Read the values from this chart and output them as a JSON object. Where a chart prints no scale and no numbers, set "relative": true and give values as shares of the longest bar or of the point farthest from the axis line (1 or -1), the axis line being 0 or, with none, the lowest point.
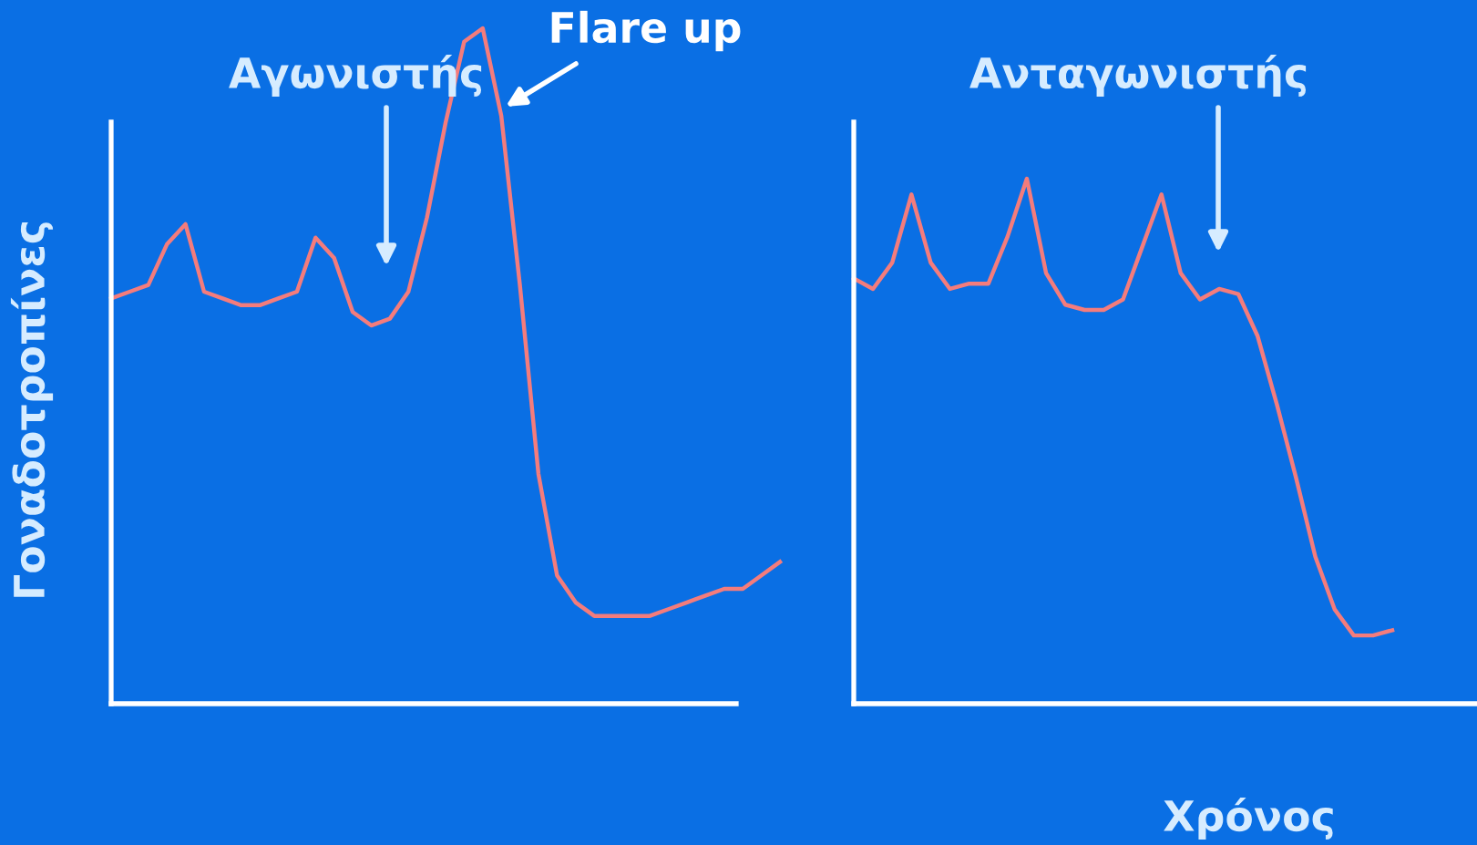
{
  "chart_data": [
    {
      "type": "line",
      "relative": true,
      "ylabel": "Γοναδοτροπίνες",
      "annotations": [
        "Αγωνιστής",
        "Flare up"
      ],
      "categories": [
        null,
        null,
        null,
        null,
        null,
        null,
        null,
        null,
        null,
        null,
        null,
        null,
        null,
        null,
        null,
        null,
        null,
        null,
        null,
        null,
        null,
        null,
        null,
        null,
        null,
        null,
        null,
        null,
        null,
        null,
        null,
        null,
        null,
        null,
        null,
        null,
        null
      ],
      "series": [
        {
          "color": "#f47c7c",
          "values": [
            0.6,
            0.61,
            0.62,
            0.68,
            0.71,
            0.61,
            0.6,
            0.59,
            0.59,
            0.6,
            0.61,
            0.69,
            0.66,
            0.58,
            0.56,
            0.57,
            0.61,
            0.72,
            0.86,
            0.98,
            1.0,
            0.87,
            0.62,
            0.34,
            0.19,
            0.15,
            0.13,
            0.13,
            0.13,
            0.13,
            0.14,
            0.15,
            0.16,
            0.17,
            0.17,
            0.19,
            0.21
          ]
        }
      ],
      "grid": false,
      "legend": false,
      "marker": "none",
      "line_style": "solid"
    },
    {
      "type": "line",
      "relative": true,
      "xlabel": "Χρόνος",
      "annotations": [
        "Ανταγωνιστής"
      ],
      "categories": [
        null,
        null,
        null,
        null,
        null,
        null,
        null,
        null,
        null,
        null,
        null,
        null,
        null,
        null,
        null,
        null,
        null,
        null,
        null,
        null,
        null,
        null,
        null,
        null,
        null,
        null,
        null,
        null,
        null
      ],
      "series": [
        {
          "color": "#f47c7c",
          "values": [
            0.81,
            0.79,
            0.84,
            0.97,
            0.84,
            0.79,
            0.8,
            0.8,
            0.89,
            1.0,
            0.82,
            0.76,
            0.75,
            0.75,
            0.77,
            0.87,
            0.97,
            0.82,
            0.77,
            0.79,
            0.78,
            0.7,
            0.57,
            0.43,
            0.28,
            0.18,
            0.13,
            0.13,
            0.14
          ]
        }
      ],
      "grid": false,
      "legend": false,
      "marker": "none",
      "line_style": "solid"
    }
  ]
}
